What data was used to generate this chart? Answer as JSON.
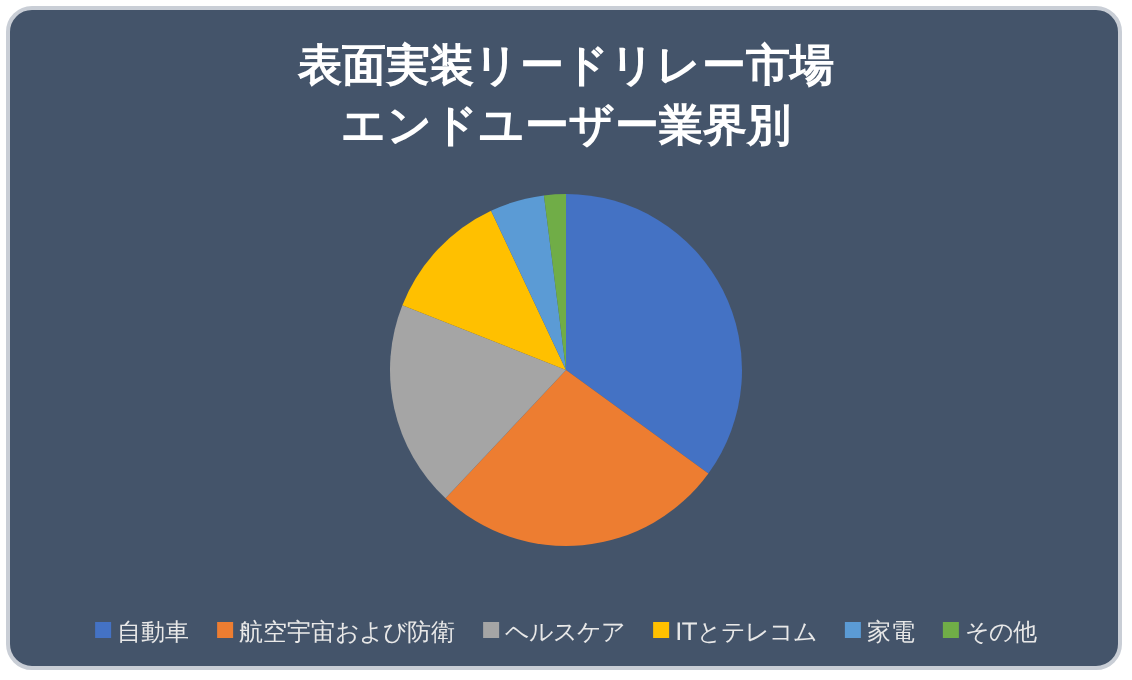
{
  "chart_data": {
    "type": "pie",
    "title": "表面実装リードリレー市場エンドユーザー業界別",
    "categories": [
      "自動車",
      "航空宇宙および防衛",
      "ヘルスケア",
      "ITとテレコム",
      "家電",
      "その他"
    ],
    "values": [
      35,
      27,
      19,
      12,
      5,
      2
    ],
    "colors": [
      "#4472c4",
      "#ed7d31",
      "#a5a5a5",
      "#ffc000",
      "#5b9bd5",
      "#70ad47"
    ],
    "legend": "bottom"
  }
}
